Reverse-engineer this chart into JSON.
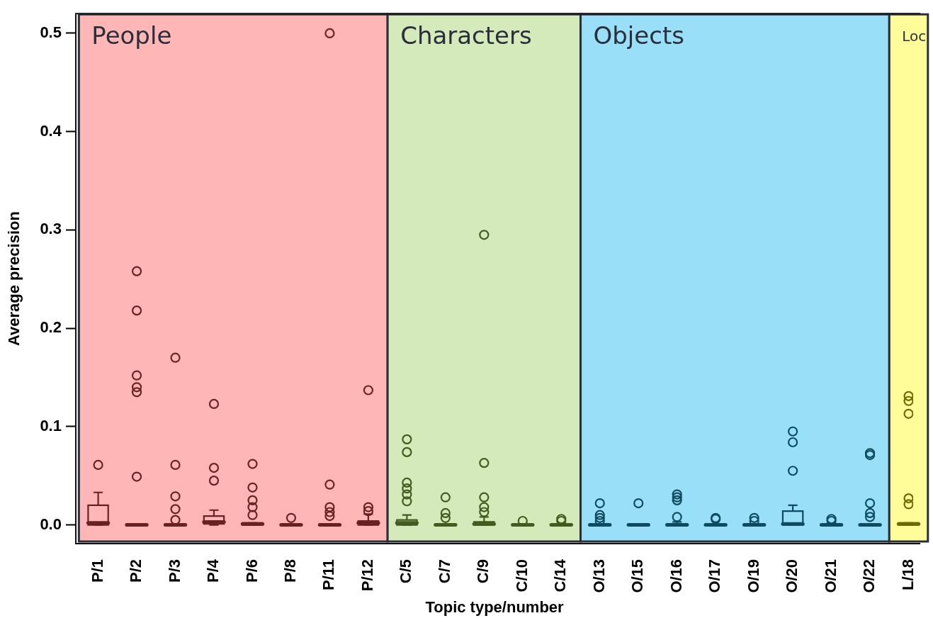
{
  "chart_data": {
    "type": "box",
    "xlabel": "Topic type/number",
    "ylabel": "Average precision",
    "categories": [
      "P/1",
      "P/2",
      "P/3",
      "P/4",
      "P/6",
      "P/8",
      "P/11",
      "P/12",
      "C/5",
      "C/7",
      "C/9",
      "C/10",
      "C/14",
      "O/13",
      "O/15",
      "O/16",
      "O/17",
      "O/19",
      "O/20",
      "O/21",
      "O/22",
      "L/18"
    ],
    "colors": [
      "#6b2121",
      "#6b2121",
      "#6b2121",
      "#6b2121",
      "#6b2121",
      "#6b2121",
      "#6b2121",
      "#6b2121",
      "#445a1f",
      "#445a1f",
      "#445a1f",
      "#445a1f",
      "#445a1f",
      "#0f4b60",
      "#0f4b60",
      "#0f4b60",
      "#0f4b60",
      "#0f4b60",
      "#0f4b60",
      "#0f4b60",
      "#0f4b60",
      "#6b6b00"
    ],
    "boxes": [
      {
        "low": 0,
        "q1": 0,
        "median": 0.002,
        "q3": 0.02,
        "high": 0.033,
        "outliers": [
          0.061
        ]
      },
      {
        "low": 0,
        "q1": 0,
        "median": 0,
        "q3": 0,
        "high": 0,
        "outliers": [
          0.258,
          0.218,
          0.152,
          0.14,
          0.135,
          0.049
        ]
      },
      {
        "low": 0,
        "q1": 0,
        "median": 0,
        "q3": 0,
        "high": 0,
        "outliers": [
          0.17,
          0.061,
          0.029,
          0.016,
          0.005
        ]
      },
      {
        "low": 0,
        "q1": 0.001,
        "median": 0.003,
        "q3": 0.009,
        "high": 0.015,
        "outliers": [
          0.123,
          0.058,
          0.045
        ]
      },
      {
        "low": 0,
        "q1": 0,
        "median": 0.001,
        "q3": 0.002,
        "high": 0.002,
        "outliers": [
          0.062,
          0.038,
          0.025,
          0.018,
          0.01
        ]
      },
      {
        "low": 0,
        "q1": 0,
        "median": 0,
        "q3": 0,
        "high": 0,
        "outliers": [
          0.007
        ]
      },
      {
        "low": 0,
        "q1": 0,
        "median": 0,
        "q3": 0,
        "high": 0,
        "outliers": [
          0.5,
          0.041,
          0.018,
          0.013,
          0.009
        ]
      },
      {
        "low": 0,
        "q1": 0,
        "median": 0.002,
        "q3": 0.004,
        "high": 0.011,
        "outliers": [
          0.137,
          0.018,
          0.014
        ]
      },
      {
        "low": 0,
        "q1": 0,
        "median": 0.002,
        "q3": 0.005,
        "high": 0.01,
        "outliers": [
          0.087,
          0.074,
          0.043,
          0.037,
          0.031,
          0.024
        ]
      },
      {
        "low": 0,
        "q1": 0,
        "median": 0,
        "q3": 0,
        "high": 0,
        "outliers": [
          0.028,
          0.012,
          0.007
        ]
      },
      {
        "low": 0,
        "q1": 0,
        "median": 0.001,
        "q3": 0.003,
        "high": 0.008,
        "outliers": [
          0.295,
          0.063,
          0.028,
          0.018,
          0.013
        ]
      },
      {
        "low": 0,
        "q1": 0,
        "median": 0,
        "q3": 0,
        "high": 0,
        "outliers": [
          0.004
        ]
      },
      {
        "low": 0,
        "q1": 0,
        "median": 0,
        "q3": 0,
        "high": 0,
        "outliers": [
          0.006,
          0.004
        ]
      },
      {
        "low": 0,
        "q1": 0,
        "median": 0,
        "q3": 0,
        "high": 0,
        "outliers": [
          0.022,
          0.01,
          0.007,
          0.004
        ]
      },
      {
        "low": 0,
        "q1": 0,
        "median": 0,
        "q3": 0,
        "high": 0,
        "outliers": [
          0.022
        ]
      },
      {
        "low": 0,
        "q1": 0,
        "median": 0,
        "q3": 0.001,
        "high": 0.003,
        "outliers": [
          0.031,
          0.028,
          0.025,
          0.008
        ]
      },
      {
        "low": 0,
        "q1": 0,
        "median": 0,
        "q3": 0,
        "high": 0,
        "outliers": [
          0.007,
          0.006
        ]
      },
      {
        "low": 0,
        "q1": 0,
        "median": 0,
        "q3": 0,
        "high": 0,
        "outliers": [
          0.007,
          0.004
        ]
      },
      {
        "low": 0,
        "q1": 0,
        "median": 0.001,
        "q3": 0.014,
        "high": 0.02,
        "outliers": [
          0.095,
          0.084,
          0.055
        ]
      },
      {
        "low": 0,
        "q1": 0,
        "median": 0,
        "q3": 0,
        "high": 0,
        "outliers": [
          0.006,
          0.004
        ]
      },
      {
        "low": 0,
        "q1": 0,
        "median": 0,
        "q3": 0,
        "high": 0,
        "outliers": [
          0.073,
          0.071,
          0.022,
          0.012,
          0.008
        ]
      },
      {
        "low": 0,
        "q1": 0,
        "median": 0.001,
        "q3": 0.002,
        "high": 0.002,
        "outliers": [
          0.131,
          0.126,
          0.113,
          0.027,
          0.021
        ]
      }
    ],
    "bands": [
      {
        "axis": "x",
        "from": "P/1",
        "to": "P/12",
        "label": "People",
        "color": "#ffb6b6"
      },
      {
        "axis": "x",
        "from": "C/5",
        "to": "C/14",
        "label": "Characters",
        "color": "#d4eabb"
      },
      {
        "axis": "x",
        "from": "O/13",
        "to": "O/22",
        "label": "Objects",
        "color": "#99dff7"
      },
      {
        "axis": "x",
        "from": "L/18",
        "to": "L/18",
        "label": "Loc",
        "color": "#fffd99"
      }
    ],
    "ylim": [
      -0.019,
      0.52
    ],
    "yticks": [
      {
        "value": 0,
        "label": "0.0"
      },
      0.1,
      0.2,
      0.3,
      0.4,
      0.5
    ],
    "grid": false,
    "legend": false,
    "marker": "circle"
  }
}
